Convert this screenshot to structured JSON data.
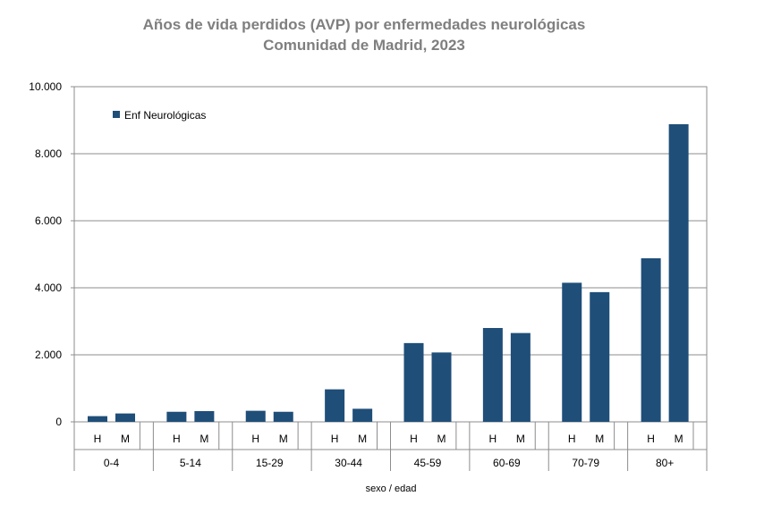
{
  "chart_data": {
    "type": "bar",
    "title": "Años de vida perdidos (AVP) por enfermedades neurológicas",
    "subtitle": "Comunidad de Madrid, 2023",
    "xlabel": "sexo / edad",
    "ylabel": "",
    "ylim": [
      0,
      10000
    ],
    "yticks": [
      {
        "value": 0,
        "label": "0"
      },
      {
        "value": 2000,
        "label": "2.000"
      },
      {
        "value": 4000,
        "label": "4.000"
      },
      {
        "value": 6000,
        "label": "6.000"
      },
      {
        "value": 8000,
        "label": "8.000"
      },
      {
        "value": 10000,
        "label": "10.000"
      }
    ],
    "grid": true,
    "legend_position": "top-left",
    "groups": [
      "0-4",
      "5-14",
      "15-29",
      "30-44",
      "45-59",
      "60-69",
      "70-79",
      "80+"
    ],
    "subcategories": [
      "H",
      "M"
    ],
    "series": [
      {
        "name": "Enf Neurológicas",
        "color": "#1f4e79",
        "values": [
          [
            170,
            250
          ],
          [
            300,
            320
          ],
          [
            330,
            300
          ],
          [
            970,
            390
          ],
          [
            2350,
            2070
          ],
          [
            2800,
            2650
          ],
          [
            4150,
            3870
          ],
          [
            4880,
            8880
          ]
        ]
      }
    ]
  }
}
